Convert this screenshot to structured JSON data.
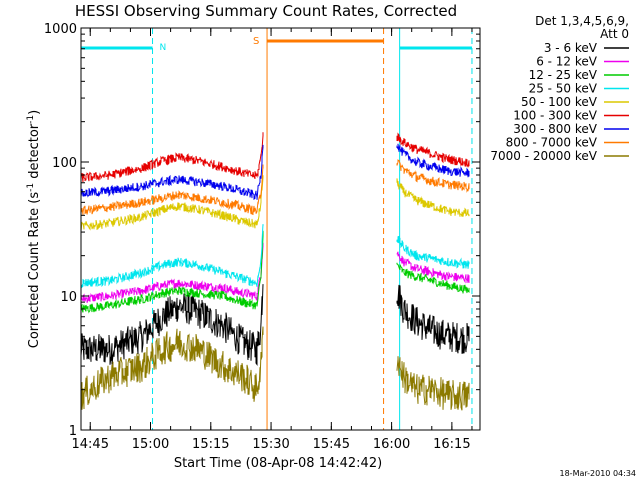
{
  "chart_data": {
    "type": "line",
    "title": "HESSI Observing Summary Count Rates, Corrected",
    "xlabel": "Start Time (08-Apr-08 14:42:42)",
    "ylabel_main": "Corrected Count Rate (s",
    "ylabel_sup1": "-1",
    "ylabel_mid": " detector",
    "ylabel_sup2": "-1",
    "ylabel_end": ")",
    "y_scale": "log",
    "ylim": [
      1,
      1000
    ],
    "xlim": [
      "14:42:42",
      "16:22:00"
    ],
    "x_ticks": [
      "14:45",
      "15:00",
      "15:15",
      "15:30",
      "15:45",
      "16:00",
      "16:15"
    ],
    "y_ticks": [
      "1",
      "10",
      "100",
      "1000"
    ],
    "legend_header_1": "Det 1,3,4,5,6,9,",
    "legend_header_2": "Att 0",
    "legend_position": "right",
    "timestamp": "18-Mar-2010 04:34",
    "flag_labels": {
      "night": "N",
      "saa": "S"
    },
    "series": [
      {
        "name": "3 - 6 keV",
        "color": "#000000",
        "segments": [
          {
            "x": [
              "14:42:42",
              "14:50",
              "14:58",
              "15:03",
              "15:07",
              "15:12",
              "15:18",
              "15:23",
              "15:26:30",
              "15:27:30",
              "15:28:00"
            ],
            "y": [
              4,
              4,
              5,
              7,
              8.5,
              7.5,
              6,
              4.5,
              4,
              6,
              14
            ]
          },
          {
            "x": [
              "16:01:20",
              "16:03",
              "16:06",
              "16:10",
              "16:14",
              "16:19:30"
            ],
            "y": [
              11,
              8,
              6.5,
              5.5,
              5,
              4.8
            ]
          }
        ]
      },
      {
        "name": "6 - 12 keV",
        "color": "#ee00ee",
        "segments": [
          {
            "x": [
              "14:42:42",
              "14:50",
              "14:58",
              "15:03",
              "15:07",
              "15:12",
              "15:18",
              "15:23",
              "15:26:30",
              "15:27:30",
              "15:28:00"
            ],
            "y": [
              9.5,
              10,
              11,
              12,
              12.5,
              12,
              11.5,
              10.5,
              10,
              15,
              25
            ]
          },
          {
            "x": [
              "16:01:20",
              "16:03",
              "16:06",
              "16:10",
              "16:14",
              "16:19:30"
            ],
            "y": [
              21,
              18,
              16,
              15,
              14,
              13.5
            ]
          }
        ]
      },
      {
        "name": "12 - 25 keV",
        "color": "#00cc00",
        "segments": [
          {
            "x": [
              "14:42:42",
              "14:50",
              "14:58",
              "15:03",
              "15:07",
              "15:12",
              "15:18",
              "15:23",
              "15:26:30",
              "15:27:30",
              "15:28:00"
            ],
            "y": [
              8,
              8.5,
              9.5,
              10.5,
              11,
              10.5,
              10,
              9,
              8.5,
              14,
              30
            ]
          },
          {
            "x": [
              "16:01:20",
              "16:03",
              "16:06",
              "16:10",
              "16:14",
              "16:19:30"
            ],
            "y": [
              17,
              15,
              14,
              13,
              12,
              11
            ]
          }
        ]
      },
      {
        "name": "25 - 50 keV",
        "color": "#00e6ee",
        "segments": [
          {
            "x": [
              "14:42:42",
              "14:50",
              "14:58",
              "15:03",
              "15:07",
              "15:12",
              "15:18",
              "15:23",
              "15:26:30",
              "15:27:30",
              "15:28:00"
            ],
            "y": [
              12.5,
              13,
              15,
              17,
              18,
              17,
              15,
              13.5,
              12.5,
              18,
              35
            ]
          },
          {
            "x": [
              "16:01:20",
              "16:03",
              "16:06",
              "16:10",
              "16:14",
              "16:19:30"
            ],
            "y": [
              27,
              23,
              20,
              19,
              18,
              17
            ]
          }
        ]
      },
      {
        "name": "50 - 100 keV",
        "color": "#dcc800",
        "segments": [
          {
            "x": [
              "14:42:42",
              "14:50",
              "14:58",
              "15:03",
              "15:07",
              "15:12",
              "15:18",
              "15:23",
              "15:26:30",
              "15:27:30",
              "15:28:00"
            ],
            "y": [
              33,
              35,
              39,
              44,
              47,
              44,
              40,
              36,
              34,
              50,
              80
            ]
          },
          {
            "x": [
              "16:01:20",
              "16:03",
              "16:06",
              "16:10",
              "16:14",
              "16:19:30"
            ],
            "y": [
              70,
              60,
              52,
              47,
              43,
              41
            ]
          }
        ]
      },
      {
        "name": "100 - 300 keV",
        "color": "#e60000",
        "segments": [
          {
            "x": [
              "14:42:42",
              "14:50",
              "14:58",
              "15:03",
              "15:07",
              "15:12",
              "15:18",
              "15:23",
              "15:26:30",
              "15:27:30",
              "15:28:00"
            ],
            "y": [
              76,
              80,
              90,
              102,
              108,
              102,
              92,
              83,
              78,
              110,
              160
            ]
          },
          {
            "x": [
              "16:01:20",
              "16:03",
              "16:06",
              "16:10",
              "16:14",
              "16:19:30"
            ],
            "y": [
              155,
              140,
              125,
              115,
              105,
              98
            ]
          }
        ]
      },
      {
        "name": "300 - 800 keV",
        "color": "#0000ee",
        "segments": [
          {
            "x": [
              "14:42:42",
              "14:50",
              "14:58",
              "15:03",
              "15:07",
              "15:12",
              "15:18",
              "15:23",
              "15:26:30",
              "15:27:30",
              "15:28:00"
            ],
            "y": [
              58,
              61,
              66,
              71,
              74,
              71,
              66,
              60,
              56,
              80,
              140
            ]
          },
          {
            "x": [
              "16:01:20",
              "16:03",
              "16:06",
              "16:10",
              "16:14",
              "16:19:30"
            ],
            "y": [
              135,
              115,
              100,
              92,
              86,
              82
            ]
          }
        ]
      },
      {
        "name": "800 - 7000 keV",
        "color": "#ff7a00",
        "segments": [
          {
            "x": [
              "14:42:42",
              "14:50",
              "14:58",
              "15:03",
              "15:07",
              "15:12",
              "15:18",
              "15:23",
              "15:26:30",
              "15:27:30",
              "15:28:00"
            ],
            "y": [
              43,
              46,
              50,
              54,
              57,
              54,
              50,
              46,
              43,
              60,
              95
            ]
          },
          {
            "x": [
              "16:01:20",
              "16:03",
              "16:06",
              "16:10",
              "16:14",
              "16:19:30"
            ],
            "y": [
              100,
              88,
              78,
              72,
              68,
              65
            ]
          }
        ]
      },
      {
        "name": "7000 - 20000 keV",
        "color": "#8c7a00",
        "segments": [
          {
            "x": [
              "14:42:42",
              "14:50",
              "14:58",
              "15:03",
              "15:07",
              "15:12",
              "15:18",
              "15:23",
              "15:26:30",
              "15:27:30",
              "15:28:00"
            ],
            "y": [
              1.8,
              2.5,
              3,
              4,
              4.5,
              4,
              3,
              2.5,
              2,
              3,
              5
            ]
          },
          {
            "x": [
              "16:01:20",
              "16:03",
              "16:06",
              "16:10",
              "16:14",
              "16:19:30"
            ],
            "y": [
              3.5,
              2.5,
              2,
              2,
              1.8,
              1.8
            ]
          }
        ]
      }
    ],
    "flags": {
      "night_bars": [
        [
          "14:42:42",
          "15:00:30"
        ],
        [
          "16:02:00",
          "16:20:00"
        ]
      ],
      "saa_bar": [
        "15:29:00",
        "15:58:00"
      ],
      "night_dashed_lines": [
        "15:00:30",
        "16:20:00"
      ],
      "night_solid_lines": [
        "14:42:42",
        "16:02:00"
      ],
      "saa_solid_line": "15:29:00",
      "saa_dashed_line": "15:58:00",
      "night_color": "#00e6ee",
      "saa_color": "#ff7a00"
    }
  }
}
